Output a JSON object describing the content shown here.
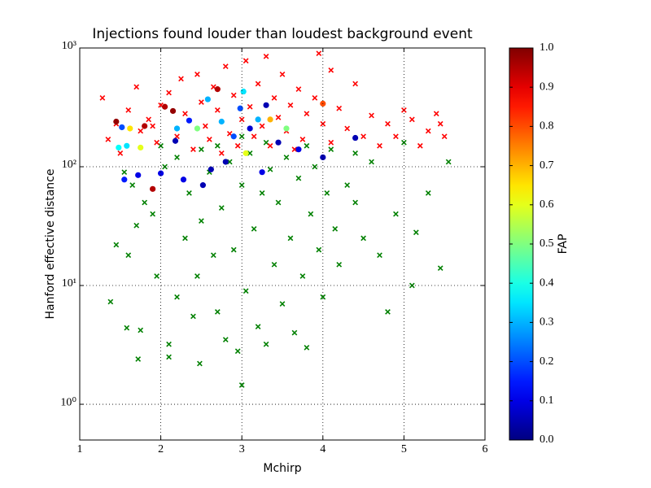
{
  "chart_data": {
    "type": "scatter",
    "title": "Injections found louder than loudest background event",
    "xlabel": "Mchirp",
    "ylabel": "Hanford effective distance",
    "xlim": [
      1,
      6
    ],
    "xticks": [
      1,
      2,
      3,
      4,
      5,
      6
    ],
    "ylim": [
      0.5,
      1000
    ],
    "yscale": "log",
    "yticks": [
      {
        "value": 1,
        "label": "10⁰"
      },
      {
        "value": 10,
        "label": "10¹"
      },
      {
        "value": 100,
        "label": "10²"
      },
      {
        "value": 1000,
        "label": "10³"
      }
    ],
    "grid": true,
    "series": [
      {
        "marker": "x",
        "color": "#008000",
        "x": [
          1.38,
          1.58,
          1.72,
          1.75,
          1.45,
          1.6,
          1.7,
          1.8,
          1.9,
          1.95,
          2.1,
          2.1,
          2.2,
          2.3,
          2.35,
          2.4,
          2.45,
          2.48,
          2.5,
          2.6,
          2.65,
          2.7,
          2.75,
          2.8,
          2.85,
          2.9,
          2.95,
          3.0,
          3.0,
          3.05,
          3.1,
          3.15,
          3.2,
          3.25,
          3.3,
          3.35,
          3.4,
          3.45,
          3.5,
          3.55,
          3.6,
          3.65,
          3.7,
          3.75,
          3.8,
          3.85,
          3.9,
          3.95,
          4.0,
          4.05,
          4.1,
          4.15,
          4.2,
          4.3,
          4.4,
          4.5,
          4.6,
          4.7,
          4.8,
          4.9,
          5.0,
          5.1,
          5.15,
          5.3,
          5.45,
          5.55,
          1.55,
          2.0,
          2.2,
          2.7,
          3.3,
          3.8,
          4.4,
          1.65,
          2.05,
          3.0,
          2.5
        ],
        "y": [
          7.3,
          4.4,
          2.4,
          4.2,
          22,
          18,
          32,
          50,
          40,
          12,
          3.2,
          2.5,
          8,
          25,
          60,
          5.5,
          12,
          2.2,
          35,
          90,
          18,
          6,
          45,
          3.5,
          110,
          20,
          2.8,
          1.45,
          70,
          9,
          130,
          30,
          4.5,
          60,
          3.2,
          95,
          15,
          50,
          7,
          120,
          25,
          4,
          80,
          12,
          3,
          40,
          100,
          20,
          8,
          60,
          140,
          30,
          15,
          70,
          50,
          25,
          110,
          18,
          6,
          40,
          160,
          10,
          28,
          60,
          14,
          110,
          90,
          150,
          120,
          150,
          160,
          150,
          130,
          70,
          100,
          180,
          140
        ]
      },
      {
        "marker": "x",
        "color": "#ff0000",
        "x": [
          1.28,
          1.35,
          1.45,
          1.5,
          1.6,
          1.7,
          1.75,
          1.85,
          1.95,
          2.0,
          2.1,
          2.2,
          2.25,
          2.3,
          2.4,
          2.45,
          2.5,
          2.55,
          2.6,
          2.65,
          2.7,
          2.8,
          2.85,
          2.9,
          2.95,
          3.0,
          3.05,
          3.1,
          3.15,
          3.2,
          3.25,
          3.3,
          3.35,
          3.4,
          3.45,
          3.5,
          3.55,
          3.6,
          3.7,
          3.75,
          3.8,
          3.9,
          3.95,
          4.0,
          4.1,
          4.2,
          4.3,
          4.4,
          4.5,
          4.6,
          4.7,
          4.8,
          4.9,
          5.0,
          5.1,
          5.2,
          5.3,
          5.4,
          5.45,
          5.5,
          4.1,
          1.9,
          2.75,
          3.65
        ],
        "y": [
          380,
          170,
          230,
          130,
          300,
          470,
          200,
          250,
          160,
          330,
          420,
          180,
          550,
          280,
          140,
          600,
          350,
          220,
          170,
          470,
          300,
          700,
          190,
          400,
          150,
          250,
          780,
          320,
          180,
          500,
          220,
          850,
          150,
          380,
          260,
          600,
          200,
          330,
          450,
          170,
          280,
          380,
          900,
          230,
          160,
          310,
          210,
          500,
          180,
          270,
          150,
          230,
          180,
          300,
          250,
          150,
          200,
          280,
          230,
          180,
          650,
          220,
          130,
          140
        ]
      },
      {
        "marker": "o",
        "colormap": "jet",
        "x": [
          1.45,
          1.48,
          1.52,
          1.55,
          1.58,
          1.62,
          1.72,
          1.75,
          1.8,
          1.9,
          2.0,
          2.05,
          2.15,
          2.18,
          2.2,
          2.28,
          2.35,
          2.45,
          2.52,
          2.58,
          2.62,
          2.7,
          2.75,
          2.8,
          2.9,
          2.98,
          3.02,
          3.05,
          3.1,
          3.2,
          3.25,
          3.3,
          3.35,
          3.45,
          3.55,
          3.7,
          4.0,
          4.0,
          4.4
        ],
        "y": [
          240,
          145,
          215,
          78,
          150,
          210,
          85,
          145,
          220,
          65,
          88,
          320,
          295,
          165,
          210,
          78,
          245,
          210,
          70,
          370,
          95,
          450,
          240,
          110,
          180,
          310,
          430,
          130,
          210,
          250,
          90,
          330,
          250,
          160,
          210,
          140,
          120,
          340,
          175
        ],
        "c": [
          0.98,
          0.38,
          0.2,
          0.15,
          0.35,
          0.65,
          0.1,
          0.6,
          0.95,
          0.95,
          0.1,
          0.95,
          0.98,
          0.05,
          0.3,
          0.1,
          0.15,
          0.5,
          0.05,
          0.3,
          0.05,
          0.95,
          0.3,
          0.05,
          0.2,
          0.2,
          0.35,
          0.6,
          0.08,
          0.3,
          0.1,
          0.05,
          0.7,
          0.05,
          0.5,
          0.1,
          0.05,
          0.8,
          0.05
        ]
      }
    ],
    "colorbar": {
      "label": "FAP",
      "lim": [
        0,
        1
      ],
      "ticks": [
        {
          "value": 0,
          "label": "0.0"
        },
        0.1,
        0.2,
        0.3,
        0.4,
        0.5,
        0.6,
        0.7,
        0.8,
        0.9,
        {
          "value": 1,
          "label": "1.0"
        }
      ]
    }
  }
}
